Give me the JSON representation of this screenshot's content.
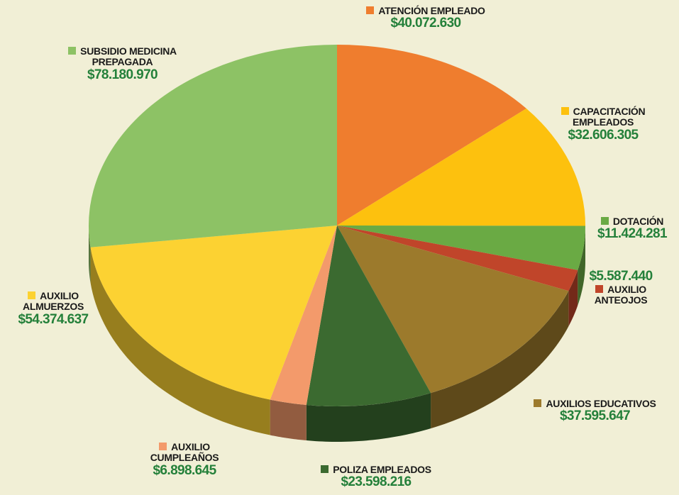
{
  "chart_data": {
    "type": "pie",
    "categories": [
      "ATENCIÓN EMPLEADO",
      "CAPACITACIÓN EMPLEADOS",
      "DOTACIÓN",
      "AUXILIO ANTEOJOS",
      "AUXILIOS EDUCATIVOS",
      "POLIZA EMPLEADOS",
      "AUXILIO CUMPLEAÑOS",
      "AUXILIO ALMUERZOS",
      "SUBSIDIO MEDICINA PREPAGADA"
    ],
    "values": [
      40072630,
      32606305,
      11424281,
      5587440,
      37595647,
      23598216,
      6898645,
      54374637,
      78180970
    ],
    "value_labels": [
      "$40.072.630",
      "$32.606.305",
      "$11.424.281",
      "$5.587.440",
      "$37.595.647",
      "$23.598.216",
      "$6.898.645",
      "$54.374.637",
      "$78.180.970"
    ],
    "colors": [
      "#ef7d2e",
      "#fdc10e",
      "#6aaa44",
      "#c0452a",
      "#9c7a2c",
      "#3b6a30",
      "#f39a6b",
      "#fcd232",
      "#8dc265"
    ]
  }
}
